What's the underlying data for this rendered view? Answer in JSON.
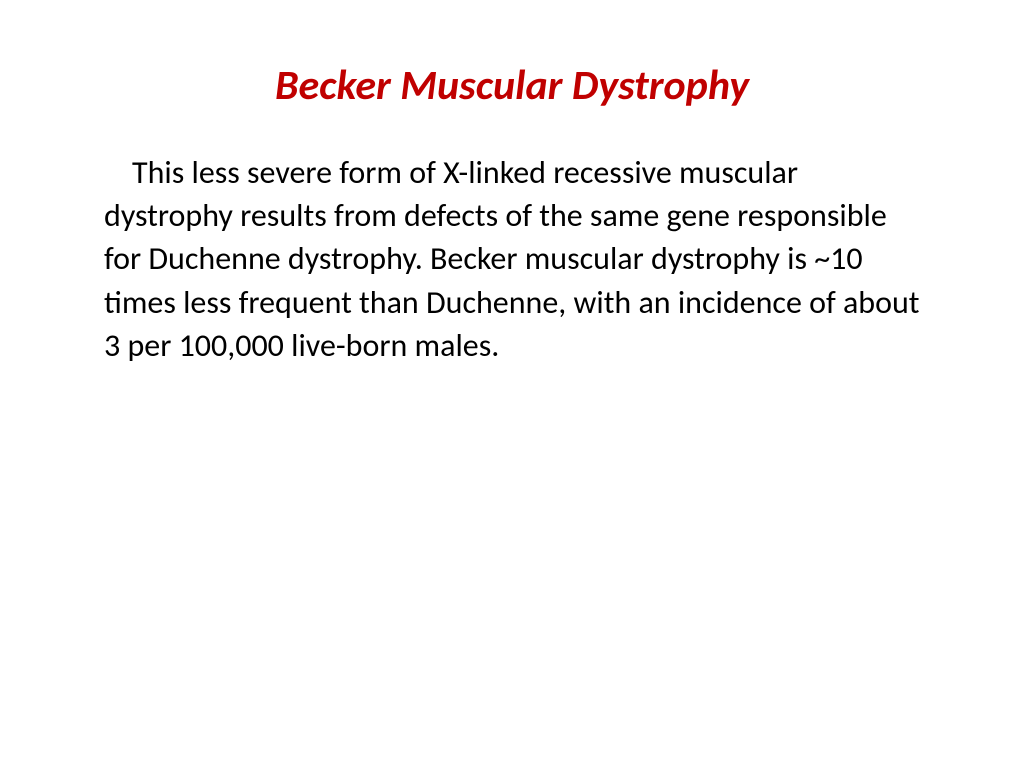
{
  "slide": {
    "title": "Becker Muscular Dystrophy",
    "body": "This less severe form of X-linked recessive muscular dystrophy results from defects of the same gene responsible for Duchenne dystrophy. Becker muscular dystrophy is ~10 times less frequent than Duchenne, with an incidence of about 3 per 100,000 live-born males.",
    "title_color": "#c00000",
    "title_fontsize": 42,
    "body_color": "#000000",
    "body_fontsize": 32,
    "background_color": "#ffffff"
  }
}
